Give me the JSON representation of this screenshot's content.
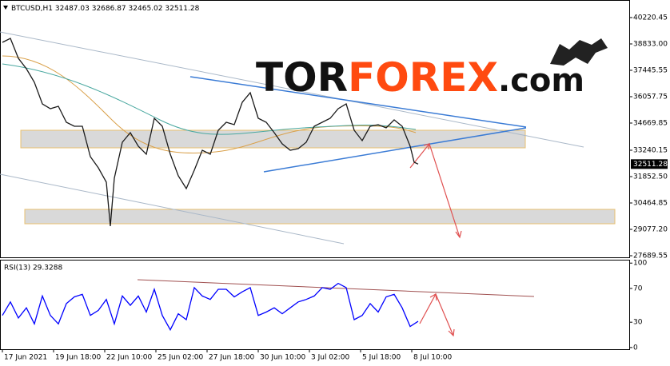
{
  "chart_data": [
    {
      "type": "line",
      "title": "BTCUSD,H1",
      "ohlc": [
        32487.03,
        32686.87,
        32465.02,
        32511.28
      ],
      "color": "#1a1a1a",
      "last_price": 32511.28,
      "x": [
        0,
        10,
        20,
        30,
        40,
        50,
        60,
        70,
        80,
        90,
        100,
        110,
        120,
        130,
        135,
        140,
        150,
        160,
        170,
        180,
        190,
        200,
        210,
        220,
        230,
        240,
        250,
        260,
        270,
        280,
        290,
        300,
        310,
        320,
        330,
        340,
        350,
        360,
        370,
        380,
        390,
        400,
        410,
        420,
        430,
        440,
        450,
        460,
        470,
        480,
        490,
        500,
        510,
        515,
        520
      ],
      "values": [
        38917,
        39127,
        38076,
        37530,
        36814,
        35679,
        35426,
        35552,
        34711,
        34501,
        34501,
        32903,
        32315,
        31558,
        29246,
        31768,
        33660,
        34165,
        33450,
        33030,
        34922,
        34501,
        33030,
        31895,
        31222,
        32189,
        33240,
        33030,
        34291,
        34711,
        34585,
        35763,
        36268,
        34922,
        34711,
        34165,
        33576,
        33240,
        33324,
        33660,
        34501,
        34711,
        34922,
        35426,
        35679,
        34291,
        33745,
        34501,
        34585,
        34417,
        34838,
        34501,
        33450,
        32609,
        32511
      ],
      "xlim": [
        -3,
        785
      ],
      "xticks": [
        {
          "value": 0,
          "label": "17 Jun 2021"
        },
        {
          "value": 64,
          "label": "19 Jun 18:00"
        },
        {
          "value": 128,
          "label": "22 Jun 10:00"
        },
        {
          "value": 192,
          "label": "25 Jun 02:00"
        },
        {
          "value": 256,
          "label": "27 Jun 18:00"
        },
        {
          "value": 320,
          "label": "30 Jun 10:00"
        },
        {
          "value": 384,
          "label": "3 Jul 02:00"
        },
        {
          "value": 448,
          "label": "5 Jul 18:00"
        },
        {
          "value": 512,
          "label": "8 Jul 10:00"
        }
      ],
      "ylim": [
        27605,
        41145
      ],
      "yticks": [
        40220.45,
        {
          "value": 38833.0,
          "label": "38833.00"
        },
        37445.55,
        36057.75,
        34669.85,
        33240.15,
        {
          "value": 31852.5,
          "label": "31852.50"
        },
        30464.85,
        {
          "value": 29077.2,
          "label": "29077.20"
        },
        27689.55
      ]
    },
    {
      "type": "line",
      "title": "RSI(13) 29.3288",
      "color": "#0000ff",
      "x": [
        0,
        10,
        20,
        30,
        40,
        50,
        60,
        70,
        80,
        90,
        100,
        110,
        120,
        130,
        140,
        150,
        160,
        170,
        180,
        190,
        200,
        210,
        220,
        230,
        240,
        250,
        260,
        270,
        280,
        290,
        300,
        310,
        320,
        330,
        340,
        350,
        360,
        370,
        380,
        390,
        400,
        410,
        420,
        430,
        440,
        450,
        460,
        470,
        480,
        490,
        500,
        510,
        520
      ],
      "values": [
        38,
        54,
        35,
        47,
        28,
        61,
        38,
        28,
        52,
        60,
        63,
        38,
        44,
        57,
        28,
        61,
        50,
        61,
        42,
        69,
        38,
        21,
        40,
        33,
        71,
        61,
        57,
        69,
        69,
        60,
        66,
        71,
        38,
        42,
        47,
        40,
        47,
        54,
        57,
        61,
        71,
        69,
        76,
        71,
        33,
        38,
        52,
        42,
        60,
        63,
        47,
        25,
        31
      ],
      "xlim": [
        -3,
        785
      ],
      "ylim": [
        -2,
        104
      ],
      "yticks": [
        100,
        70,
        30,
        0
      ]
    }
  ],
  "logo": {
    "tor": "TOR",
    "forex": "FOREX",
    "com": ".com"
  }
}
